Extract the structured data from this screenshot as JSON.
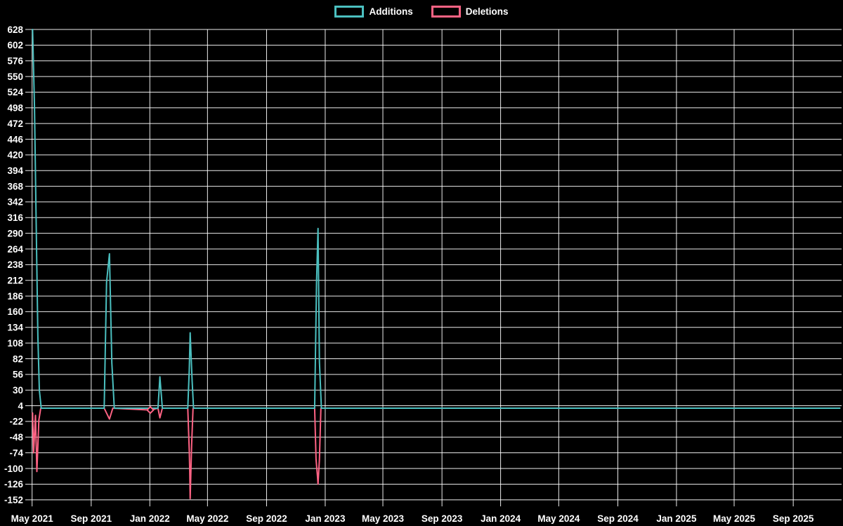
{
  "legend": {
    "items": [
      {
        "label": "Additions",
        "color": "#4BC0C0"
      },
      {
        "label": "Deletions",
        "color": "#FF6384"
      }
    ]
  },
  "chart_data": {
    "type": "line",
    "title": "",
    "xlabel": "",
    "ylabel": "",
    "background_color": "#000000",
    "grid_color": "rgba(255,255,255,0.92)",
    "tick_text_color": "#ffffff",
    "legend_position": "top-center",
    "grid": true,
    "y_axis": {
      "max": 628,
      "min": -152,
      "tick_step": 26,
      "ticks": [
        628,
        602,
        576,
        550,
        524,
        498,
        472,
        446,
        420,
        394,
        368,
        342,
        316,
        290,
        264,
        238,
        212,
        186,
        160,
        134,
        108,
        82,
        56,
        30,
        4,
        -22,
        -48,
        -74,
        -100,
        -126,
        -152
      ]
    },
    "x_axis": {
      "ticks": [
        {
          "label": "May 2021",
          "date": "2021-05-01"
        },
        {
          "label": "Sep 2021",
          "date": "2021-09-01"
        },
        {
          "label": "Jan 2022",
          "date": "2022-01-01"
        },
        {
          "label": "May 2022",
          "date": "2022-05-01"
        },
        {
          "label": "Sep 2022",
          "date": "2022-09-01"
        },
        {
          "label": "Jan 2023",
          "date": "2023-01-01"
        },
        {
          "label": "May 2023",
          "date": "2023-05-01"
        },
        {
          "label": "Sep 2023",
          "date": "2023-09-01"
        },
        {
          "label": "Jan 2024",
          "date": "2024-01-01"
        },
        {
          "label": "May 2024",
          "date": "2024-05-01"
        },
        {
          "label": "Sep 2024",
          "date": "2024-09-01"
        },
        {
          "label": "Jan 2025",
          "date": "2025-01-01"
        },
        {
          "label": "May 2025",
          "date": "2025-05-01"
        },
        {
          "label": "Sep 2025",
          "date": "2025-09-01"
        }
      ]
    },
    "series": [
      {
        "name": "Deletions",
        "color": "#FF6384",
        "points": [
          [
            "2021-05-02",
            -8
          ],
          [
            "2021-05-04",
            -74
          ],
          [
            "2021-05-08",
            -12
          ],
          [
            "2021-05-11",
            -105
          ],
          [
            "2021-05-15",
            -20
          ],
          [
            "2021-05-19",
            0
          ],
          [
            "2021-09-28",
            0
          ],
          [
            "2021-10-09",
            -18
          ],
          [
            "2021-10-16",
            0
          ],
          [
            "2022-01-02",
            -3
          ],
          [
            "2022-01-18",
            0
          ],
          [
            "2022-01-22",
            -16
          ],
          [
            "2022-01-27",
            0
          ],
          [
            "2022-03-21",
            0
          ],
          [
            "2022-03-24",
            -70
          ],
          [
            "2022-03-25",
            -104
          ],
          [
            "2022-03-26",
            -150
          ],
          [
            "2022-03-29",
            -60
          ],
          [
            "2022-04-01",
            0
          ],
          [
            "2022-12-10",
            0
          ],
          [
            "2022-12-13",
            -85
          ],
          [
            "2022-12-16",
            -114
          ],
          [
            "2022-12-17",
            -126
          ],
          [
            "2022-12-20",
            -85
          ],
          [
            "2022-12-23",
            0
          ],
          [
            "2025-12-07",
            0
          ]
        ],
        "markers": [
          {
            "date": "2022-01-02",
            "value": -3,
            "shape": "diamond"
          }
        ]
      },
      {
        "name": "Additions",
        "color": "#4BC0C0",
        "points": [
          [
            "2021-05-02",
            628
          ],
          [
            "2021-05-06",
            500
          ],
          [
            "2021-05-09",
            330
          ],
          [
            "2021-05-13",
            120
          ],
          [
            "2021-05-16",
            30
          ],
          [
            "2021-05-20",
            0
          ],
          [
            "2021-09-28",
            0
          ],
          [
            "2021-10-03",
            209
          ],
          [
            "2021-10-09",
            256
          ],
          [
            "2021-10-14",
            75
          ],
          [
            "2021-10-19",
            0
          ],
          [
            "2022-01-18",
            0
          ],
          [
            "2022-01-22",
            52
          ],
          [
            "2022-01-27",
            0
          ],
          [
            "2022-03-21",
            0
          ],
          [
            "2022-03-24",
            63
          ],
          [
            "2022-03-26",
            125
          ],
          [
            "2022-03-30",
            45
          ],
          [
            "2022-04-02",
            0
          ],
          [
            "2022-12-10",
            0
          ],
          [
            "2022-12-14",
            209
          ],
          [
            "2022-12-17",
            298
          ],
          [
            "2022-12-20",
            77
          ],
          [
            "2022-12-24",
            0
          ],
          [
            "2025-12-07",
            0
          ]
        ],
        "markers": []
      }
    ]
  }
}
